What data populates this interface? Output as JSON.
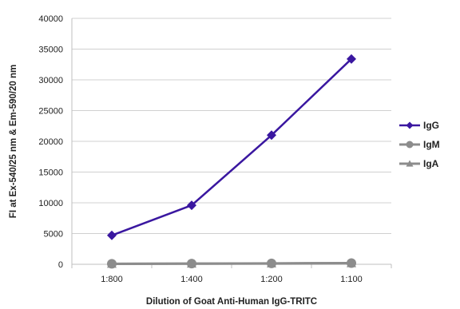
{
  "chart_data": {
    "type": "line",
    "categories": [
      "1:800",
      "1:400",
      "1:200",
      "1:100"
    ],
    "series": [
      {
        "name": "IgG",
        "values": [
          4700,
          9600,
          21000,
          33400
        ],
        "color": "#3a17a0",
        "marker": "diamond"
      },
      {
        "name": "IgM",
        "values": [
          80,
          110,
          150,
          200
        ],
        "color": "#8c8c8c",
        "marker": "circle"
      },
      {
        "name": "IgA",
        "values": [
          60,
          90,
          120,
          160
        ],
        "color": "#8c8c8c",
        "marker": "triangle"
      }
    ],
    "xlabel": "Dilution of Goat Anti-Human IgG-TRITC",
    "ylabel": "FI at Ex-540/25 nm & Em-590/20 nm",
    "ylim": [
      0,
      40000
    ],
    "yticks": [
      0,
      5000,
      10000,
      15000,
      20000,
      25000,
      30000,
      35000,
      40000
    ],
    "grid": "horizontal",
    "legend": "right"
  }
}
